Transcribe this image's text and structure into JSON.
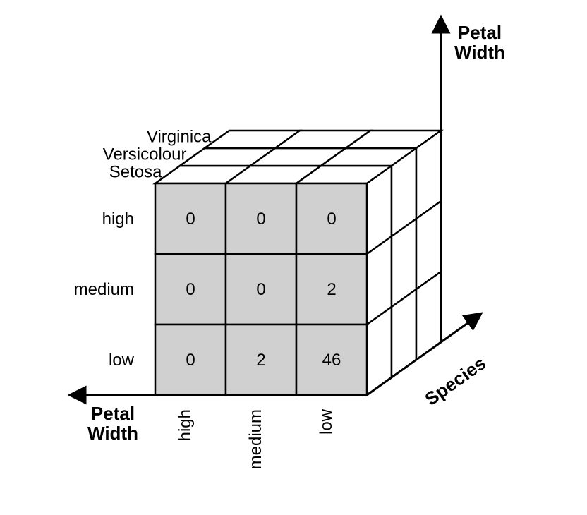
{
  "type": "3d-cube-diagram",
  "axes": {
    "left": {
      "label": "Petal\nWidth",
      "categories": [
        "high",
        "medium",
        "low"
      ]
    },
    "bottom": {
      "label": "Petal\nWidth",
      "categories": [
        "high",
        "medium",
        "low"
      ]
    },
    "depth": {
      "label": "Species",
      "categories": [
        "Virginica",
        "Versicolour",
        "Setosa"
      ]
    },
    "vertical_arrow_label": "Petal\nWidth"
  },
  "front_face": {
    "rows": [
      {
        "label": "high",
        "cells": [
          "0",
          "0",
          "0"
        ]
      },
      {
        "label": "medium",
        "cells": [
          "0",
          "0",
          "2"
        ]
      },
      {
        "label": "low",
        "cells": [
          "0",
          "2",
          "46"
        ]
      }
    ],
    "col_labels": [
      "high",
      "medium",
      "low"
    ]
  },
  "colors": {
    "front_face_fill": "#d0d0d0",
    "other_face_fill": "#ffffff",
    "stroke": "#000000",
    "background": "#ffffff"
  },
  "layout": {
    "cell_size": 100,
    "depth_dx": 35,
    "depth_dy": -25,
    "stroke_width": 2.5,
    "label_fontsize": 24,
    "axis_label_fontsize": 26
  }
}
